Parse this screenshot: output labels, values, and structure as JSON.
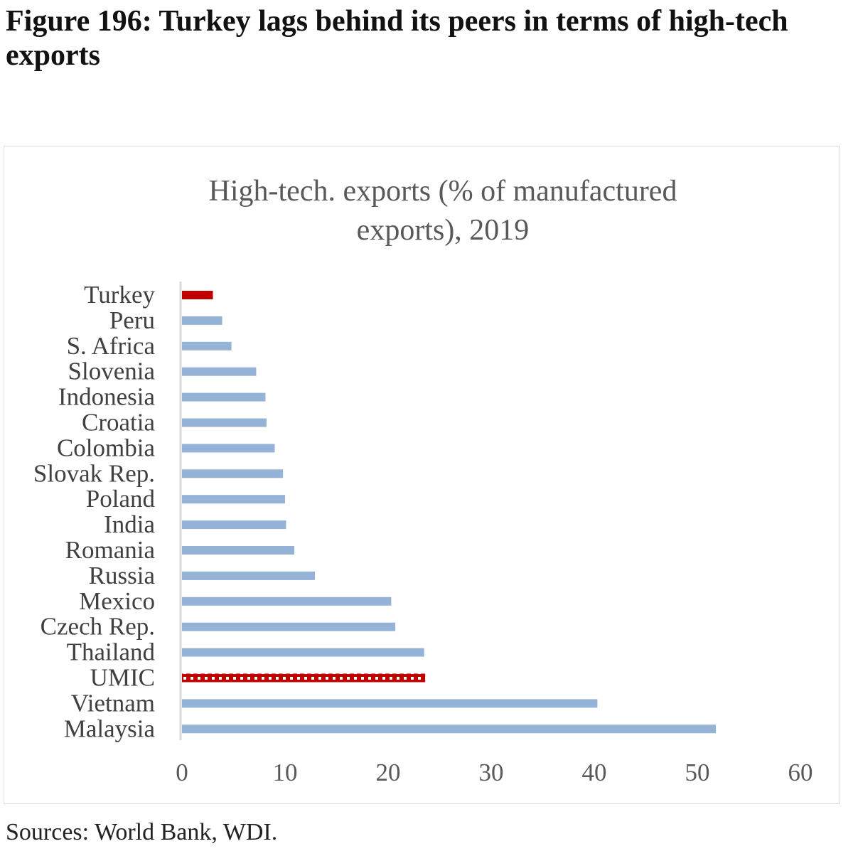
{
  "figure_title": "Figure 196: Turkey lags behind its peers in terms of high-tech exports",
  "source": "Sources: World Bank, WDI.",
  "chart_data": {
    "type": "bar",
    "orientation": "horizontal",
    "title": "High-tech. exports (% of manufactured exports), 2019",
    "title_lines": [
      "High-tech. exports (% of manufactured",
      "exports), 2019"
    ],
    "categories": [
      "Turkey",
      "Peru",
      "S. Africa",
      "Slovenia",
      "Indonesia",
      "Croatia",
      "Colombia",
      "Slovak Rep.",
      "Poland",
      "India",
      "Romania",
      "Russia",
      "Mexico",
      "Czech Rep.",
      "Thailand",
      "UMIC",
      "Vietnam",
      "Malaysia"
    ],
    "values": [
      3.0,
      3.9,
      4.8,
      7.2,
      8.1,
      8.2,
      9.0,
      9.8,
      10.0,
      10.1,
      10.9,
      12.9,
      20.3,
      20.7,
      23.5,
      23.6,
      40.3,
      51.8
    ],
    "highlight": {
      "Turkey": "solid",
      "UMIC": "patterned"
    },
    "xlim": [
      0,
      60
    ],
    "xticks": [
      0,
      10,
      20,
      30,
      40,
      50,
      60
    ],
    "xlabel": "",
    "ylabel": "",
    "grid": false,
    "legend": "none",
    "colors": {
      "default": "#95b3d7",
      "highlight": "#c00000",
      "axis": "#d9d9d9",
      "text": "#404040"
    }
  }
}
